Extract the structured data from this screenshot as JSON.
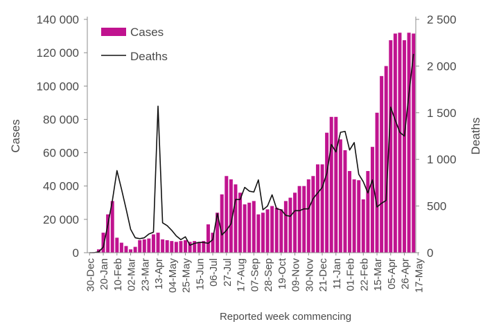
{
  "chart_data": {
    "type": "bar+line",
    "xlabel": "Reported week commencing",
    "ylabel_left": "Cases",
    "ylabel_right": "Deaths",
    "ylim_left": [
      0,
      140000
    ],
    "ylim_right": [
      0,
      2500
    ],
    "y_ticks_left": [
      "0",
      "20 000",
      "40 000",
      "60 000",
      "80 000",
      "100 000",
      "120 000",
      "140 000"
    ],
    "y_ticks_right": [
      "0",
      "500",
      "1 000",
      "1 500",
      "2 000",
      "2 500"
    ],
    "grid": false,
    "legend_position": "top-left",
    "legend": {
      "cases": "Cases",
      "deaths": "Deaths"
    },
    "colors": {
      "cases": "#c0138f",
      "deaths": "#111111",
      "axis": "#8c8c8c"
    },
    "x_tick_labels": [
      "30-Dec",
      "20-Jan",
      "10-Feb",
      "02-Mar",
      "23-Mar",
      "13-Apr",
      "04-May",
      "25-May",
      "15-Jun",
      "06-Jul",
      "27-Jul",
      "17-Aug",
      "07-Sep",
      "28-Sep",
      "19-Oct",
      "09-Nov",
      "30-Nov",
      "21-Dec",
      "11-Jan",
      "01-Feb",
      "22-Feb",
      "15-Mar",
      "05-Apr",
      "26-Apr",
      "17-May"
    ],
    "x_tick_every": 3,
    "series": [
      {
        "name": "Cases",
        "type": "bar",
        "axis": "left",
        "values": [
          200,
          300,
          2000,
          12000,
          23000,
          31000,
          9000,
          6000,
          4000,
          2000,
          3500,
          7500,
          8000,
          8500,
          11000,
          12000,
          8000,
          7500,
          7000,
          6500,
          7000,
          7500,
          6500,
          7000,
          6500,
          7000,
          17000,
          12000,
          24000,
          35000,
          46000,
          44000,
          41000,
          36000,
          29000,
          30000,
          31000,
          23000,
          24000,
          26000,
          28000,
          27000,
          26000,
          31000,
          33000,
          36000,
          40000,
          40000,
          44000,
          46000,
          53000,
          53000,
          72000,
          81500,
          81500,
          68000,
          61500,
          49000,
          44000,
          43500,
          32000,
          49000,
          63500,
          84000,
          106000,
          112000,
          127500,
          131500,
          132000,
          127500,
          132000,
          131500
        ]
      },
      {
        "name": "Deaths",
        "type": "line",
        "axis": "right",
        "values": [
          0,
          0,
          10,
          60,
          300,
          560,
          880,
          680,
          470,
          250,
          160,
          150,
          160,
          200,
          220,
          1570,
          320,
          290,
          240,
          180,
          140,
          170,
          80,
          100,
          110,
          110,
          100,
          140,
          420,
          190,
          240,
          310,
          570,
          570,
          700,
          660,
          650,
          780,
          460,
          500,
          620,
          470,
          460,
          400,
          390,
          450,
          450,
          470,
          470,
          580,
          640,
          700,
          850,
          1160,
          1080,
          1290,
          1300,
          1100,
          1180,
          840,
          760,
          640,
          780,
          490,
          530,
          560,
          1560,
          1420,
          1290,
          1250,
          1700,
          2130
        ]
      }
    ]
  }
}
